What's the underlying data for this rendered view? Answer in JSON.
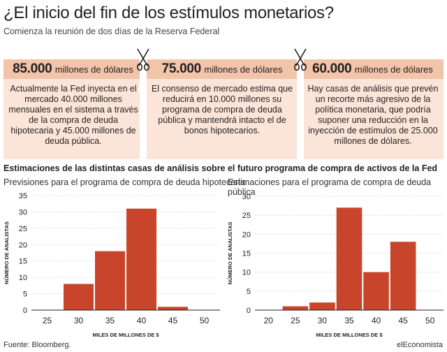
{
  "title": "¿El inicio del fin de los estímulos monetarios?",
  "subtitle": "Comienza la reunión de dos días de la Reserva Federal",
  "colors": {
    "bar": "#c8452c",
    "band": "#f2c4a9",
    "box": "#fbe5d8",
    "grid": "#cfcfcf",
    "axis": "#231f20"
  },
  "scenarios": [
    {
      "figure": "85.000",
      "unit": "millones de dólares",
      "text": "Actualmente la Fed inyecta en el mercado 40.000 millones mensuales en el sistema a través de la compra de deuda hipotecaria y 45.000 millones de deuda pública."
    },
    {
      "figure": "75.000",
      "unit": "millones de dólares",
      "text": "El consenso de mercado estima que reducirá en 10.000 millones su programa de compra de deuda pública y mantendrá intacto el de bonos hipotecarios."
    },
    {
      "figure": "60.000",
      "unit": "millones de dólares",
      "text": "Hay casas de análisis que prevén un recorte más agresivo de la política monetaria, que podría suponer una reducción en la inyección de estímulos de 25.000 millones de dólares."
    }
  ],
  "icons": {
    "cut": "scissors-icon"
  },
  "section_title": "Estimaciones de las distintas casas de análisis sobre el futuro programa de compra de activos de la Fed",
  "source": "Fuente: Bloomberg.",
  "brand": "elEconomista",
  "chart_data": [
    {
      "type": "bar",
      "title": "Previsiones para el programa de compra de deuda hipotecaria",
      "xlabel": "MILES DE MILLONES DE $",
      "ylabel": "NÚMERO DE ANALISTAS",
      "categories": [
        "25",
        "30",
        "35",
        "40",
        "45",
        "50"
      ],
      "values": [
        0,
        8,
        18,
        31,
        1,
        0
      ],
      "ylim": [
        0,
        35
      ],
      "yticks": [
        0,
        5,
        10,
        15,
        20,
        25,
        30,
        35
      ],
      "grid": true
    },
    {
      "type": "bar",
      "title": "Estimaciones para el programa de compra de deuda pública",
      "xlabel": "MILES DE MILLONES DE $",
      "ylabel": "NÚMERO DE ANALISTAS",
      "categories": [
        "20",
        "25",
        "30",
        "35",
        "40",
        "45",
        "50"
      ],
      "values": [
        0,
        1,
        2,
        27,
        10,
        18,
        0
      ],
      "ylim": [
        0,
        30
      ],
      "yticks": [
        0,
        5,
        10,
        15,
        20,
        25,
        30
      ],
      "grid": true
    }
  ]
}
